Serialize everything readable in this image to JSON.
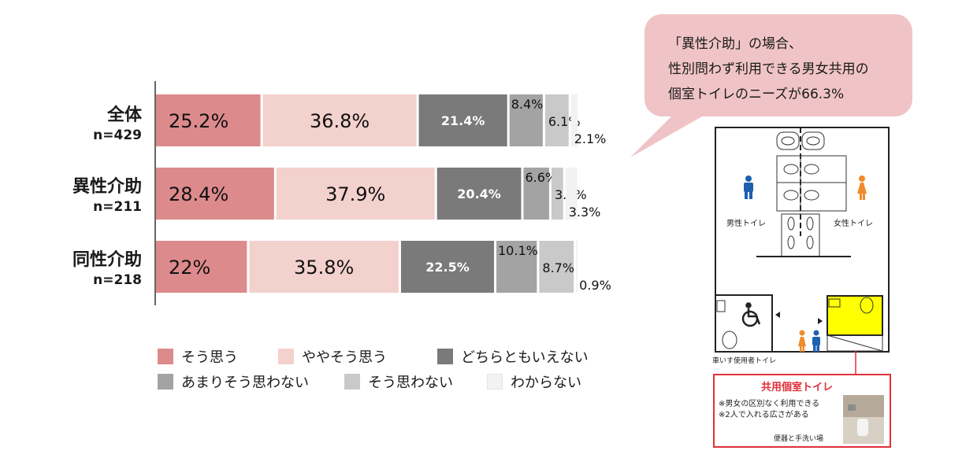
{
  "chart_data": {
    "type": "bar",
    "stacked": true,
    "orientation": "horizontal",
    "categories": [
      {
        "name": "全体",
        "n": "n=429"
      },
      {
        "name": "異性介助",
        "n": "n=211"
      },
      {
        "name": "同性介助",
        "n": "n=218"
      }
    ],
    "series": [
      {
        "name": "そう思う",
        "color": "#dd8a8c",
        "values": [
          25.2,
          28.4,
          22.0
        ],
        "labels": [
          "25.2%",
          "28.4%",
          "22%"
        ]
      },
      {
        "name": "ややそう思う",
        "color": "#f3d1cd",
        "values": [
          36.8,
          37.9,
          35.8
        ],
        "labels": [
          "36.8%",
          "37.9%",
          "35.8%"
        ]
      },
      {
        "name": "どちらともいえない",
        "color": "#7a7a7a",
        "values": [
          21.4,
          20.4,
          22.5
        ],
        "labels": [
          "21.4%",
          "20.4%",
          "22.5%"
        ]
      },
      {
        "name": "あまりそう思わない",
        "color": "#a3a3a3",
        "values": [
          8.4,
          6.6,
          10.1
        ],
        "labels": [
          "8.4%",
          "6.6%",
          "10.1%"
        ]
      },
      {
        "name": "そう思わない",
        "color": "#c9c9c9",
        "values": [
          6.1,
          3.3,
          8.7
        ],
        "labels": [
          "6.1%",
          "3.3%",
          "8.7%"
        ]
      },
      {
        "name": "わからない",
        "color": "#f2f2f2",
        "values": [
          2.1,
          3.3,
          0.9
        ],
        "labels": [
          "2.1%",
          "3.3%",
          "0.9%"
        ]
      }
    ],
    "xlim": [
      0,
      100
    ],
    "legend_position": "bottom"
  },
  "callout": {
    "line1": "「異性介助」の場合、",
    "line2": "性別問わず利用できる男女共用の",
    "line3": "個室トイレのニーズが66.3%"
  },
  "floorplan": {
    "male_label": "男性トイレ",
    "female_label": "女性トイレ",
    "wheelchair_label": "車いす使用者トイレ",
    "shared_title": "共用個室トイレ",
    "note1": "※男女の区別なく利用できる",
    "note2": "※2人で入れる広さがある",
    "photo_caption": "便器と手洗い場",
    "highlight_color": "#ffff00",
    "accent_color": "#e0303a"
  }
}
